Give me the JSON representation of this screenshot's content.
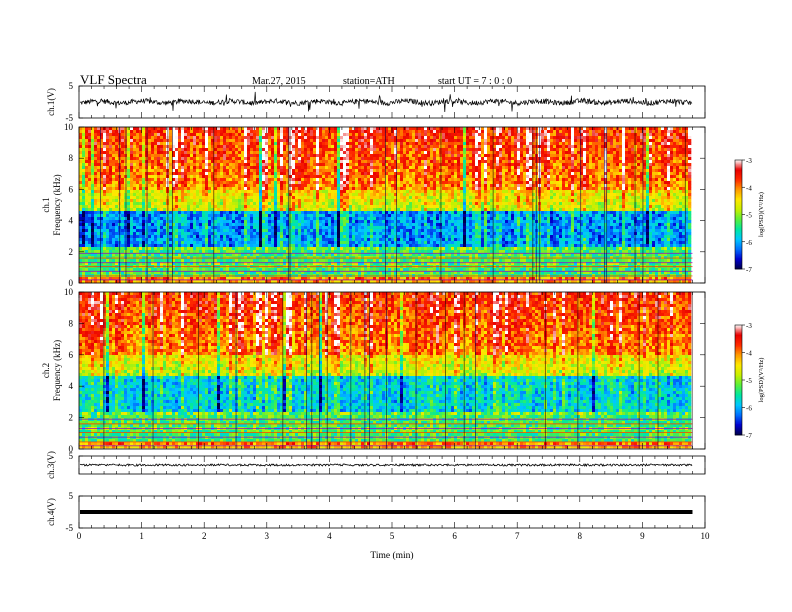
{
  "header": {
    "title": "VLF  Spectra",
    "date": "Mar.27, 2015",
    "station": "station=ATH",
    "start": "start  UT  =   7  : 0  : 0"
  },
  "chart_data": {
    "type": "heatmap",
    "xlabel": "Time  (min)",
    "xlim": [
      0,
      10
    ],
    "xticks": [
      0,
      1,
      2,
      3,
      4,
      5,
      6,
      7,
      8,
      9,
      10
    ],
    "data_end_min": 9.8,
    "panels": [
      {
        "kind": "waveform",
        "ylabel": "ch.1(V)",
        "ylim": [
          -5,
          5
        ],
        "yticks": [
          5,
          -5
        ],
        "amplitude": "noisy ~ ±1 V"
      },
      {
        "kind": "spectrogram",
        "ylabel_top": "ch.1",
        "ylabel": "Frequency  (kHz)",
        "ylim": [
          0,
          10
        ],
        "yticks": [
          0,
          2,
          4,
          6,
          8,
          10
        ],
        "colorbar": {
          "label": "log(PSD)(V²/Hz)",
          "range": [
            -7,
            -3
          ],
          "ticks": [
            "-3",
            "-4",
            "-5",
            "-6",
            "-7"
          ]
        }
      },
      {
        "kind": "spectrogram",
        "ylabel_top": "ch.2",
        "ylabel": "Frequency  (kHz)",
        "ylim": [
          0,
          10
        ],
        "yticks": [
          0,
          2,
          4,
          6,
          8,
          10
        ],
        "colorbar": {
          "label": "log(PSD)(V²/Hz)",
          "range": [
            -7,
            -3
          ],
          "ticks": [
            "-3",
            "-4",
            "-5",
            "-6",
            "-7"
          ]
        }
      },
      {
        "kind": "waveform",
        "ylabel": "ch.3(V)",
        "ylim": [
          -5,
          5
        ],
        "yticks": [
          5
        ],
        "amplitude": "near-flat ~ 0 V"
      },
      {
        "kind": "waveform",
        "ylabel": "ch.4(V)",
        "ylim": [
          -5,
          5
        ],
        "yticks": [
          5,
          -5
        ],
        "amplitude": "flat ~ 0 V"
      }
    ],
    "colormap": [
      "#00004a",
      "#0000d0",
      "#0070ff",
      "#00c8ff",
      "#00e8a0",
      "#5af03a",
      "#c8f000",
      "#ffe800",
      "#ff9a00",
      "#ff2a00",
      "#e80000",
      "#ffffff"
    ],
    "spectral_bands_kHz": [
      {
        "from": 6.0,
        "to": 10.0,
        "level": -3.8
      },
      {
        "from": 4.6,
        "to": 6.0,
        "level": -4.7
      },
      {
        "from": 2.3,
        "to": 4.6,
        "level": -6.2
      },
      {
        "from": 0.0,
        "to": 2.3,
        "level": -5.3
      }
    ]
  }
}
